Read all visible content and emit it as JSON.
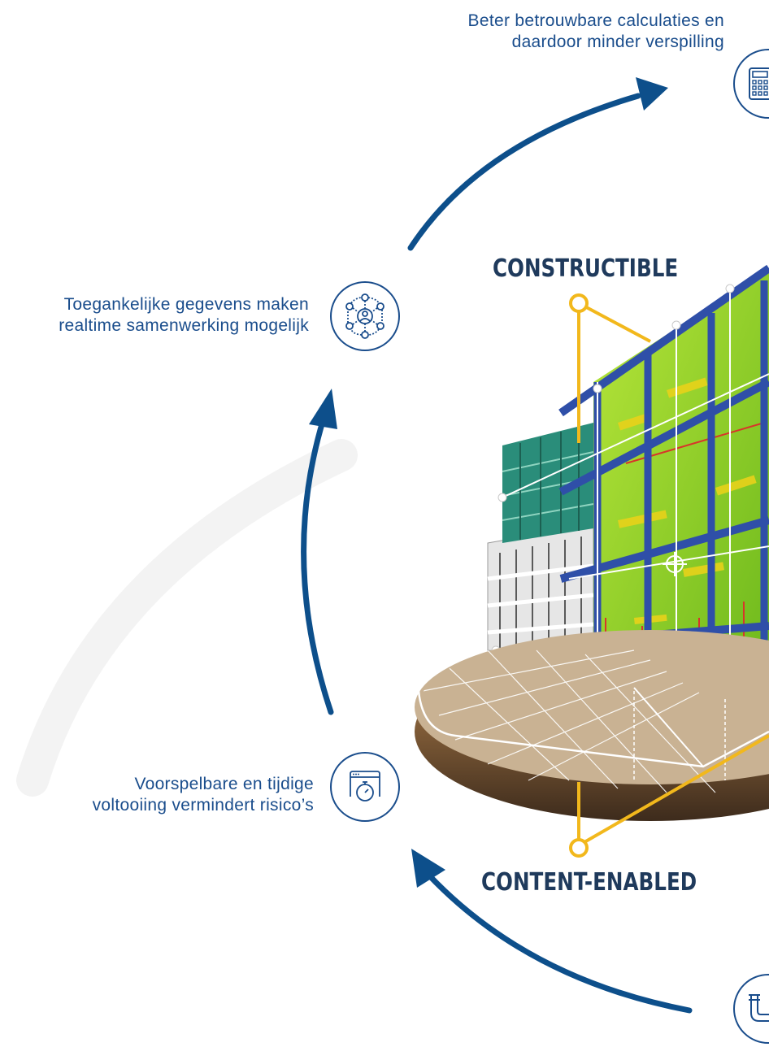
{
  "captions": {
    "estimates": [
      "Beter betrouwbare calculaties en",
      "daardoor minder verspilling"
    ],
    "collaboration": [
      "Toegankelijke gegevens maken",
      "realtime samenwerking mogelijk"
    ],
    "completion": [
      "Voorspelbare en tijdige",
      "voltooiing vermindert risico’s"
    ]
  },
  "labels": {
    "constructible": "CONSTRUCTIBLE",
    "content_enabled": "CONTENT-ENABLED"
  },
  "icons": {
    "estimates": "calculator-icon",
    "collaboration": "network-people-icon",
    "completion": "stopwatch-window-icon",
    "bottom": "pipe-icon"
  },
  "colors": {
    "arrow_blue": "#0d4f8b",
    "text_blue": "#1a4d8c",
    "yellow": "#f2b81c",
    "steel_blue": "#2f4fa8",
    "green_mep": "#9cd623",
    "teal": "#2a8d7a"
  }
}
